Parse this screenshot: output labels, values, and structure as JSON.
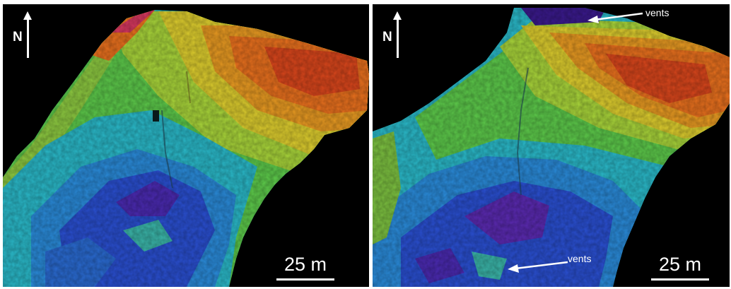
{
  "left_panel": {
    "north_label": "N",
    "scale_label": "25 m"
  },
  "right_panel": {
    "north_label": "N",
    "scale_label": "25 m",
    "vents_top_label": "vents",
    "vents_bottom_label": "vents"
  },
  "colors": {
    "background": "#000000",
    "annotation": "#ffffff",
    "deep": "#3a1a8c",
    "mid_blue": "#2a4fd0",
    "cyan": "#2ab8c8",
    "green": "#5cc84a",
    "yellow": "#d8cc30",
    "orange": "#e8781e",
    "red": "#d8401c"
  }
}
